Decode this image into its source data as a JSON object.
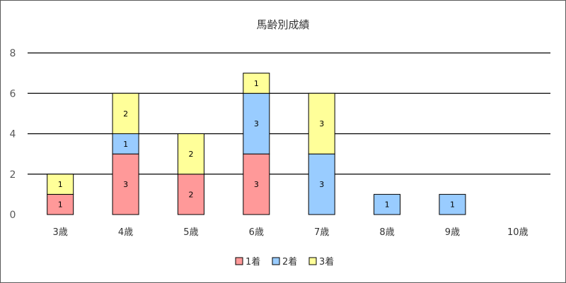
{
  "chart_data": {
    "type": "bar",
    "stacked": true,
    "title": "馬齢別成績",
    "categories": [
      "3歳",
      "4歳",
      "5歳",
      "6歳",
      "7歳",
      "8歳",
      "9歳",
      "10歳"
    ],
    "series": [
      {
        "name": "1着",
        "color": "#ff9999",
        "values": [
          1,
          3,
          2,
          3,
          0,
          0,
          0,
          0
        ]
      },
      {
        "name": "2着",
        "color": "#99ccff",
        "values": [
          0,
          1,
          0,
          3,
          3,
          1,
          1,
          0
        ]
      },
      {
        "name": "3着",
        "color": "#ffff99",
        "values": [
          1,
          2,
          2,
          1,
          3,
          0,
          0,
          0
        ]
      }
    ],
    "ylim": [
      0,
      8
    ],
    "yticks": [
      0,
      2,
      4,
      6,
      8
    ],
    "grid": true,
    "legend": "bottom",
    "data_labels": true
  }
}
